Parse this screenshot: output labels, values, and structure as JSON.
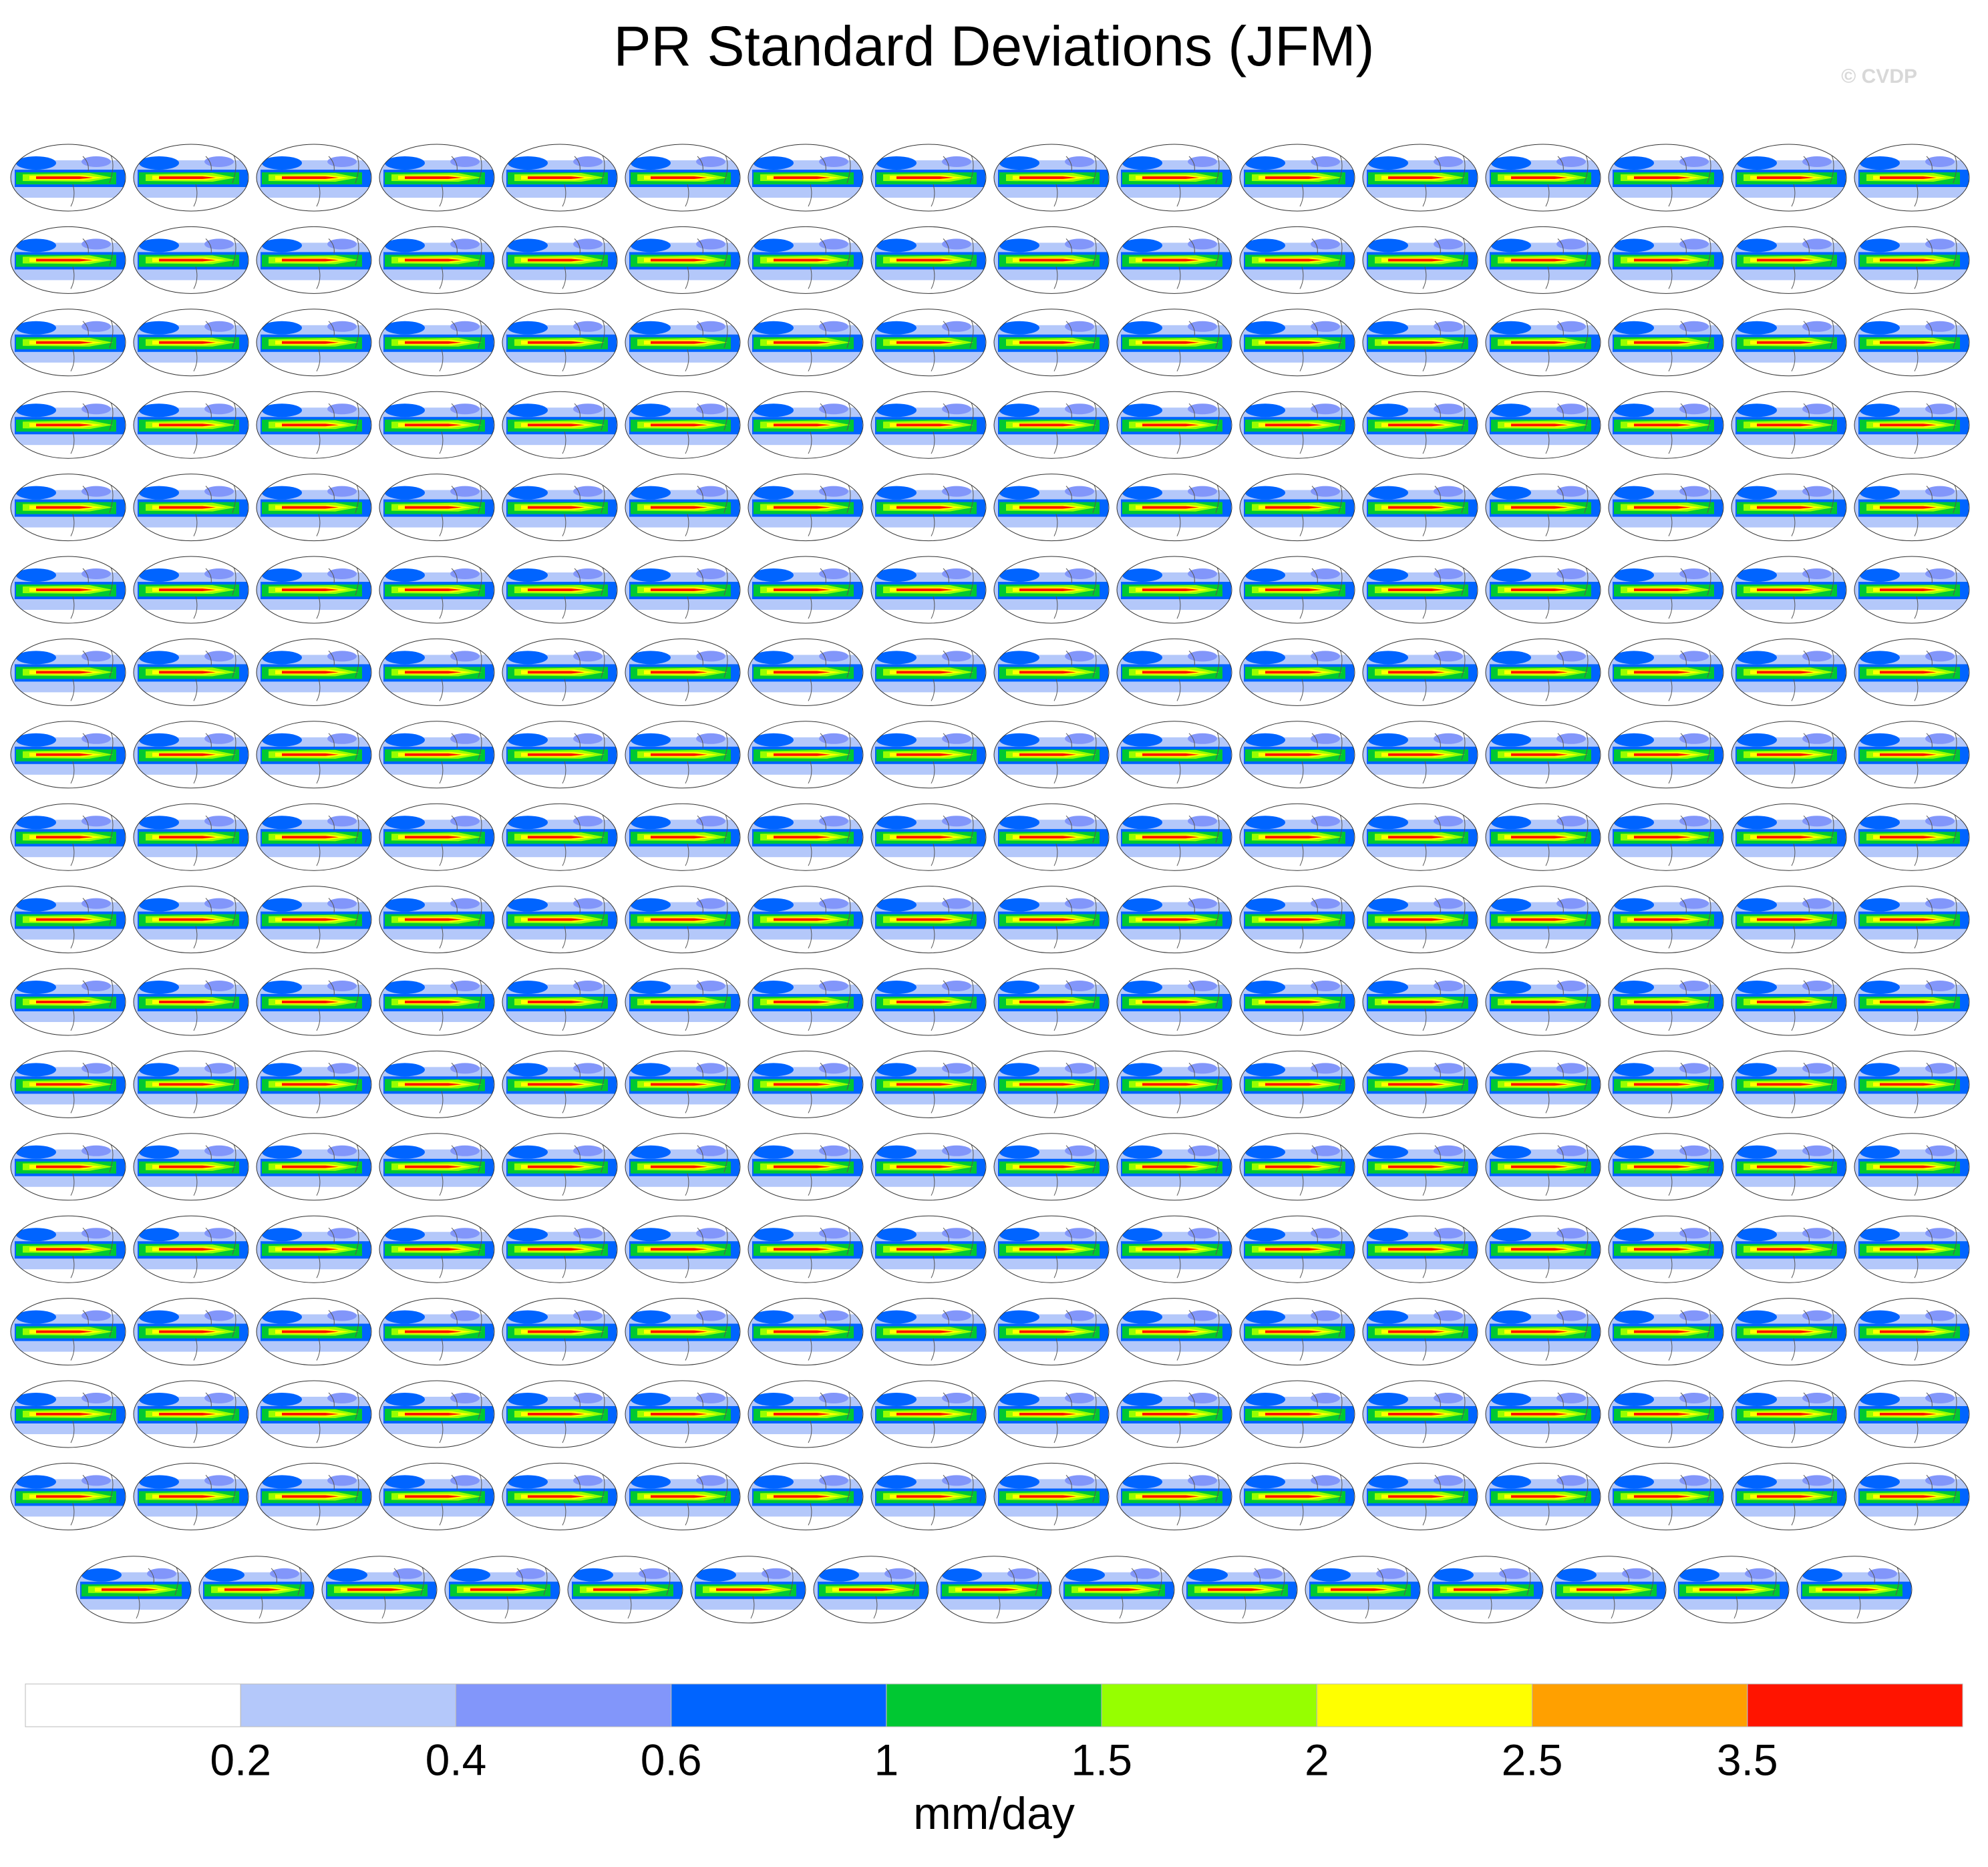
{
  "chart_data": {
    "type": "map-grid",
    "title": "PR Standard Deviations (JFM)",
    "watermark": "© CVDP",
    "colorbar": {
      "colors": [
        "#ffffff",
        "#b4c8fa",
        "#8296fa",
        "#0064ff",
        "#00c832",
        "#96ff00",
        "#ffff00",
        "#ffa000",
        "#ff1400"
      ],
      "ticks": [
        0.2,
        0.4,
        0.6,
        1,
        1.5,
        2,
        2.5,
        3.5
      ],
      "label": "mm/day"
    }
  }
}
